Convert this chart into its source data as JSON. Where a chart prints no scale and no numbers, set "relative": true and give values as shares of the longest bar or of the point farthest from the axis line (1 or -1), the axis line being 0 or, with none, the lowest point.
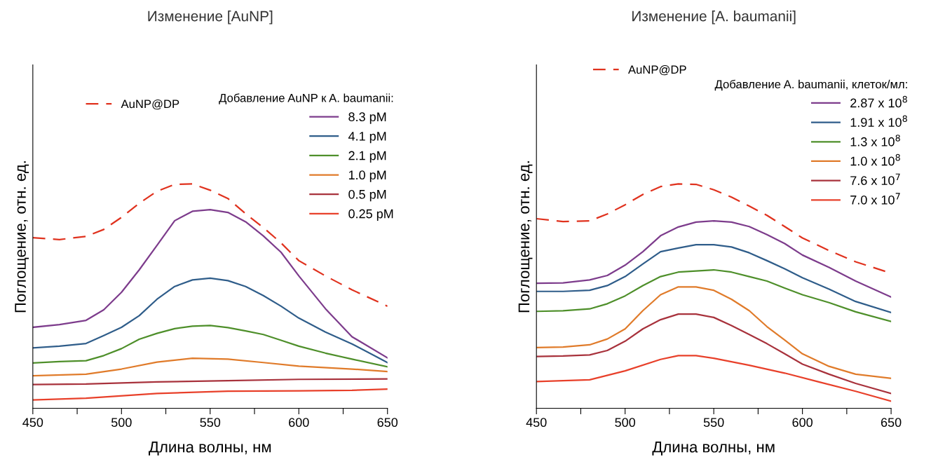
{
  "chart_data": [
    {
      "type": "line",
      "title": "Изменение [AuNP]",
      "xlabel": "Длина волны, нм",
      "ylabel": "Поглощение, отн. ед.",
      "relative": true,
      "tick_labels": "x",
      "grid": false,
      "legend": "top right",
      "marker": "none",
      "legend_title": "Добавление AuNP к A. baumanii:",
      "xlim": [
        450,
        650
      ],
      "xticks": [
        450,
        {
          "value": 475,
          "label": null
        },
        500,
        {
          "value": 525,
          "label": null
        },
        550,
        {
          "value": 575,
          "label": null
        },
        600,
        {
          "value": 625,
          "label": null
        },
        650
      ],
      "series": [
        {
          "name": "AuNP@DP",
          "color": "#e0321e",
          "line_style": "dashed",
          "x": [
            450,
            465,
            480,
            490,
            500,
            510,
            520,
            530,
            540,
            550,
            560,
            570,
            580,
            590,
            600,
            615,
            630,
            650
          ],
          "values": [
            0.76,
            0.752,
            0.766,
            0.797,
            0.851,
            0.914,
            0.967,
            0.998,
            1.0,
            0.972,
            0.935,
            0.867,
            0.805,
            0.737,
            0.658,
            0.59,
            0.528,
            0.455
          ]
        },
        {
          "name": "8.3 pM",
          "color": "#7d3c8c",
          "line_style": "solid",
          "x": [
            450,
            465,
            480,
            490,
            500,
            510,
            520,
            530,
            540,
            550,
            560,
            570,
            580,
            590,
            600,
            615,
            630,
            650
          ],
          "values": [
            0.361,
            0.373,
            0.392,
            0.439,
            0.517,
            0.617,
            0.726,
            0.836,
            0.878,
            0.885,
            0.873,
            0.831,
            0.768,
            0.695,
            0.59,
            0.444,
            0.319,
            0.225
          ]
        },
        {
          "name": "4.1 pM",
          "color": "#2f5d8a",
          "line_style": "solid",
          "x": [
            450,
            465,
            480,
            490,
            500,
            510,
            520,
            530,
            540,
            550,
            560,
            570,
            580,
            590,
            600,
            615,
            630,
            650
          ],
          "values": [
            0.269,
            0.277,
            0.289,
            0.324,
            0.361,
            0.413,
            0.486,
            0.543,
            0.572,
            0.58,
            0.569,
            0.543,
            0.502,
            0.455,
            0.402,
            0.34,
            0.287,
            0.204
          ]
        },
        {
          "name": "2.1 pM",
          "color": "#4e8f2a",
          "line_style": "solid",
          "x": [
            450,
            465,
            480,
            490,
            500,
            510,
            520,
            530,
            540,
            550,
            560,
            570,
            580,
            590,
            600,
            615,
            630,
            650
          ],
          "values": [
            0.202,
            0.208,
            0.212,
            0.235,
            0.266,
            0.308,
            0.334,
            0.355,
            0.366,
            0.369,
            0.36,
            0.345,
            0.329,
            0.303,
            0.277,
            0.246,
            0.219,
            0.185
          ]
        },
        {
          "name": "1.0 pM",
          "color": "#e07b2a",
          "line_style": "solid",
          "x": [
            450,
            480,
            500,
            520,
            540,
            560,
            580,
            600,
            630,
            650
          ],
          "values": [
            0.145,
            0.152,
            0.175,
            0.206,
            0.223,
            0.219,
            0.204,
            0.188,
            0.175,
            0.164
          ]
        },
        {
          "name": "0.5 pM",
          "color": "#a8323c",
          "line_style": "solid",
          "x": [
            450,
            480,
            520,
            560,
            600,
            650
          ],
          "values": [
            0.106,
            0.108,
            0.118,
            0.123,
            0.129,
            0.131
          ]
        },
        {
          "name": "0.25 pM",
          "color": "#e8402a",
          "line_style": "solid",
          "x": [
            450,
            480,
            520,
            560,
            600,
            630,
            650
          ],
          "values": [
            0.037,
            0.045,
            0.066,
            0.076,
            0.078,
            0.08,
            0.086
          ]
        }
      ]
    },
    {
      "type": "line",
      "title": "Изменение [A. baumanii]",
      "xlabel": "Длина волны, нм",
      "ylabel": "Поглощение, отн. ед.",
      "relative": true,
      "tick_labels": "x",
      "grid": false,
      "legend": "top right",
      "marker": "none",
      "legend_title": "Добавление A. baumanii, клеток/мл:",
      "xlim": [
        450,
        650
      ],
      "xticks": [
        450,
        {
          "value": 475,
          "label": null
        },
        500,
        {
          "value": 525,
          "label": null
        },
        550,
        {
          "value": 575,
          "label": null
        },
        600,
        {
          "value": 625,
          "label": null
        },
        650
      ],
      "series": [
        {
          "name": "AuNP@DP",
          "color": "#e0321e",
          "line_style": "dashed",
          "x": [
            450,
            465,
            480,
            490,
            500,
            510,
            520,
            530,
            540,
            550,
            560,
            570,
            580,
            590,
            600,
            615,
            630,
            650
          ],
          "values": [
            0.845,
            0.832,
            0.835,
            0.866,
            0.907,
            0.953,
            0.988,
            1.0,
            0.998,
            0.974,
            0.941,
            0.901,
            0.86,
            0.81,
            0.759,
            0.703,
            0.653,
            0.602
          ]
        },
        {
          "name": "2.87 x 10$^{8}$",
          "color": "#7d3c8c",
          "line_style": "solid",
          "x": [
            450,
            465,
            480,
            490,
            500,
            510,
            520,
            530,
            540,
            550,
            560,
            570,
            580,
            590,
            600,
            615,
            630,
            650
          ],
          "values": [
            0.557,
            0.559,
            0.572,
            0.592,
            0.638,
            0.698,
            0.769,
            0.808,
            0.83,
            0.835,
            0.83,
            0.81,
            0.774,
            0.734,
            0.683,
            0.628,
            0.567,
            0.496
          ]
        },
        {
          "name": "1.91 x 10$^{8}$",
          "color": "#2f5d8a",
          "line_style": "solid",
          "x": [
            450,
            465,
            480,
            490,
            500,
            510,
            520,
            530,
            540,
            550,
            560,
            570,
            580,
            590,
            600,
            615,
            630,
            650
          ],
          "values": [
            0.521,
            0.521,
            0.526,
            0.547,
            0.587,
            0.643,
            0.698,
            0.714,
            0.729,
            0.729,
            0.719,
            0.693,
            0.658,
            0.622,
            0.582,
            0.531,
            0.476,
            0.427
          ]
        },
        {
          "name": "1.3 x 10$^{8}$",
          "color": "#4e8f2a",
          "line_style": "solid",
          "x": [
            450,
            465,
            480,
            490,
            500,
            510,
            520,
            530,
            540,
            550,
            560,
            570,
            580,
            590,
            600,
            615,
            630,
            650
          ],
          "values": [
            0.432,
            0.435,
            0.443,
            0.466,
            0.501,
            0.547,
            0.587,
            0.607,
            0.612,
            0.617,
            0.607,
            0.587,
            0.567,
            0.536,
            0.506,
            0.471,
            0.43,
            0.387
          ]
        },
        {
          "name": "1.0 x 10$^{8}$",
          "color": "#e07b2a",
          "line_style": "solid",
          "x": [
            450,
            465,
            480,
            490,
            500,
            510,
            520,
            530,
            540,
            550,
            560,
            570,
            580,
            590,
            600,
            615,
            630,
            650
          ],
          "values": [
            0.271,
            0.273,
            0.283,
            0.309,
            0.354,
            0.435,
            0.506,
            0.541,
            0.541,
            0.526,
            0.486,
            0.435,
            0.364,
            0.304,
            0.243,
            0.187,
            0.152,
            0.134
          ]
        },
        {
          "name": "7.6 x 10$^{7}$",
          "color": "#a8323c",
          "line_style": "solid",
          "x": [
            450,
            465,
            480,
            490,
            500,
            510,
            520,
            530,
            540,
            550,
            560,
            570,
            580,
            590,
            600,
            615,
            630,
            650
          ],
          "values": [
            0.231,
            0.233,
            0.238,
            0.258,
            0.299,
            0.354,
            0.395,
            0.42,
            0.42,
            0.405,
            0.369,
            0.329,
            0.288,
            0.243,
            0.197,
            0.152,
            0.111,
            0.066
          ]
        },
        {
          "name": "7.0 x 10$^{7}$",
          "color": "#e8402a",
          "line_style": "solid",
          "x": [
            450,
            480,
            500,
            520,
            530,
            540,
            550,
            570,
            590,
            610,
            630,
            650
          ],
          "values": [
            0.119,
            0.127,
            0.167,
            0.218,
            0.235,
            0.235,
            0.223,
            0.192,
            0.157,
            0.116,
            0.076,
            0.032
          ]
        }
      ]
    }
  ]
}
